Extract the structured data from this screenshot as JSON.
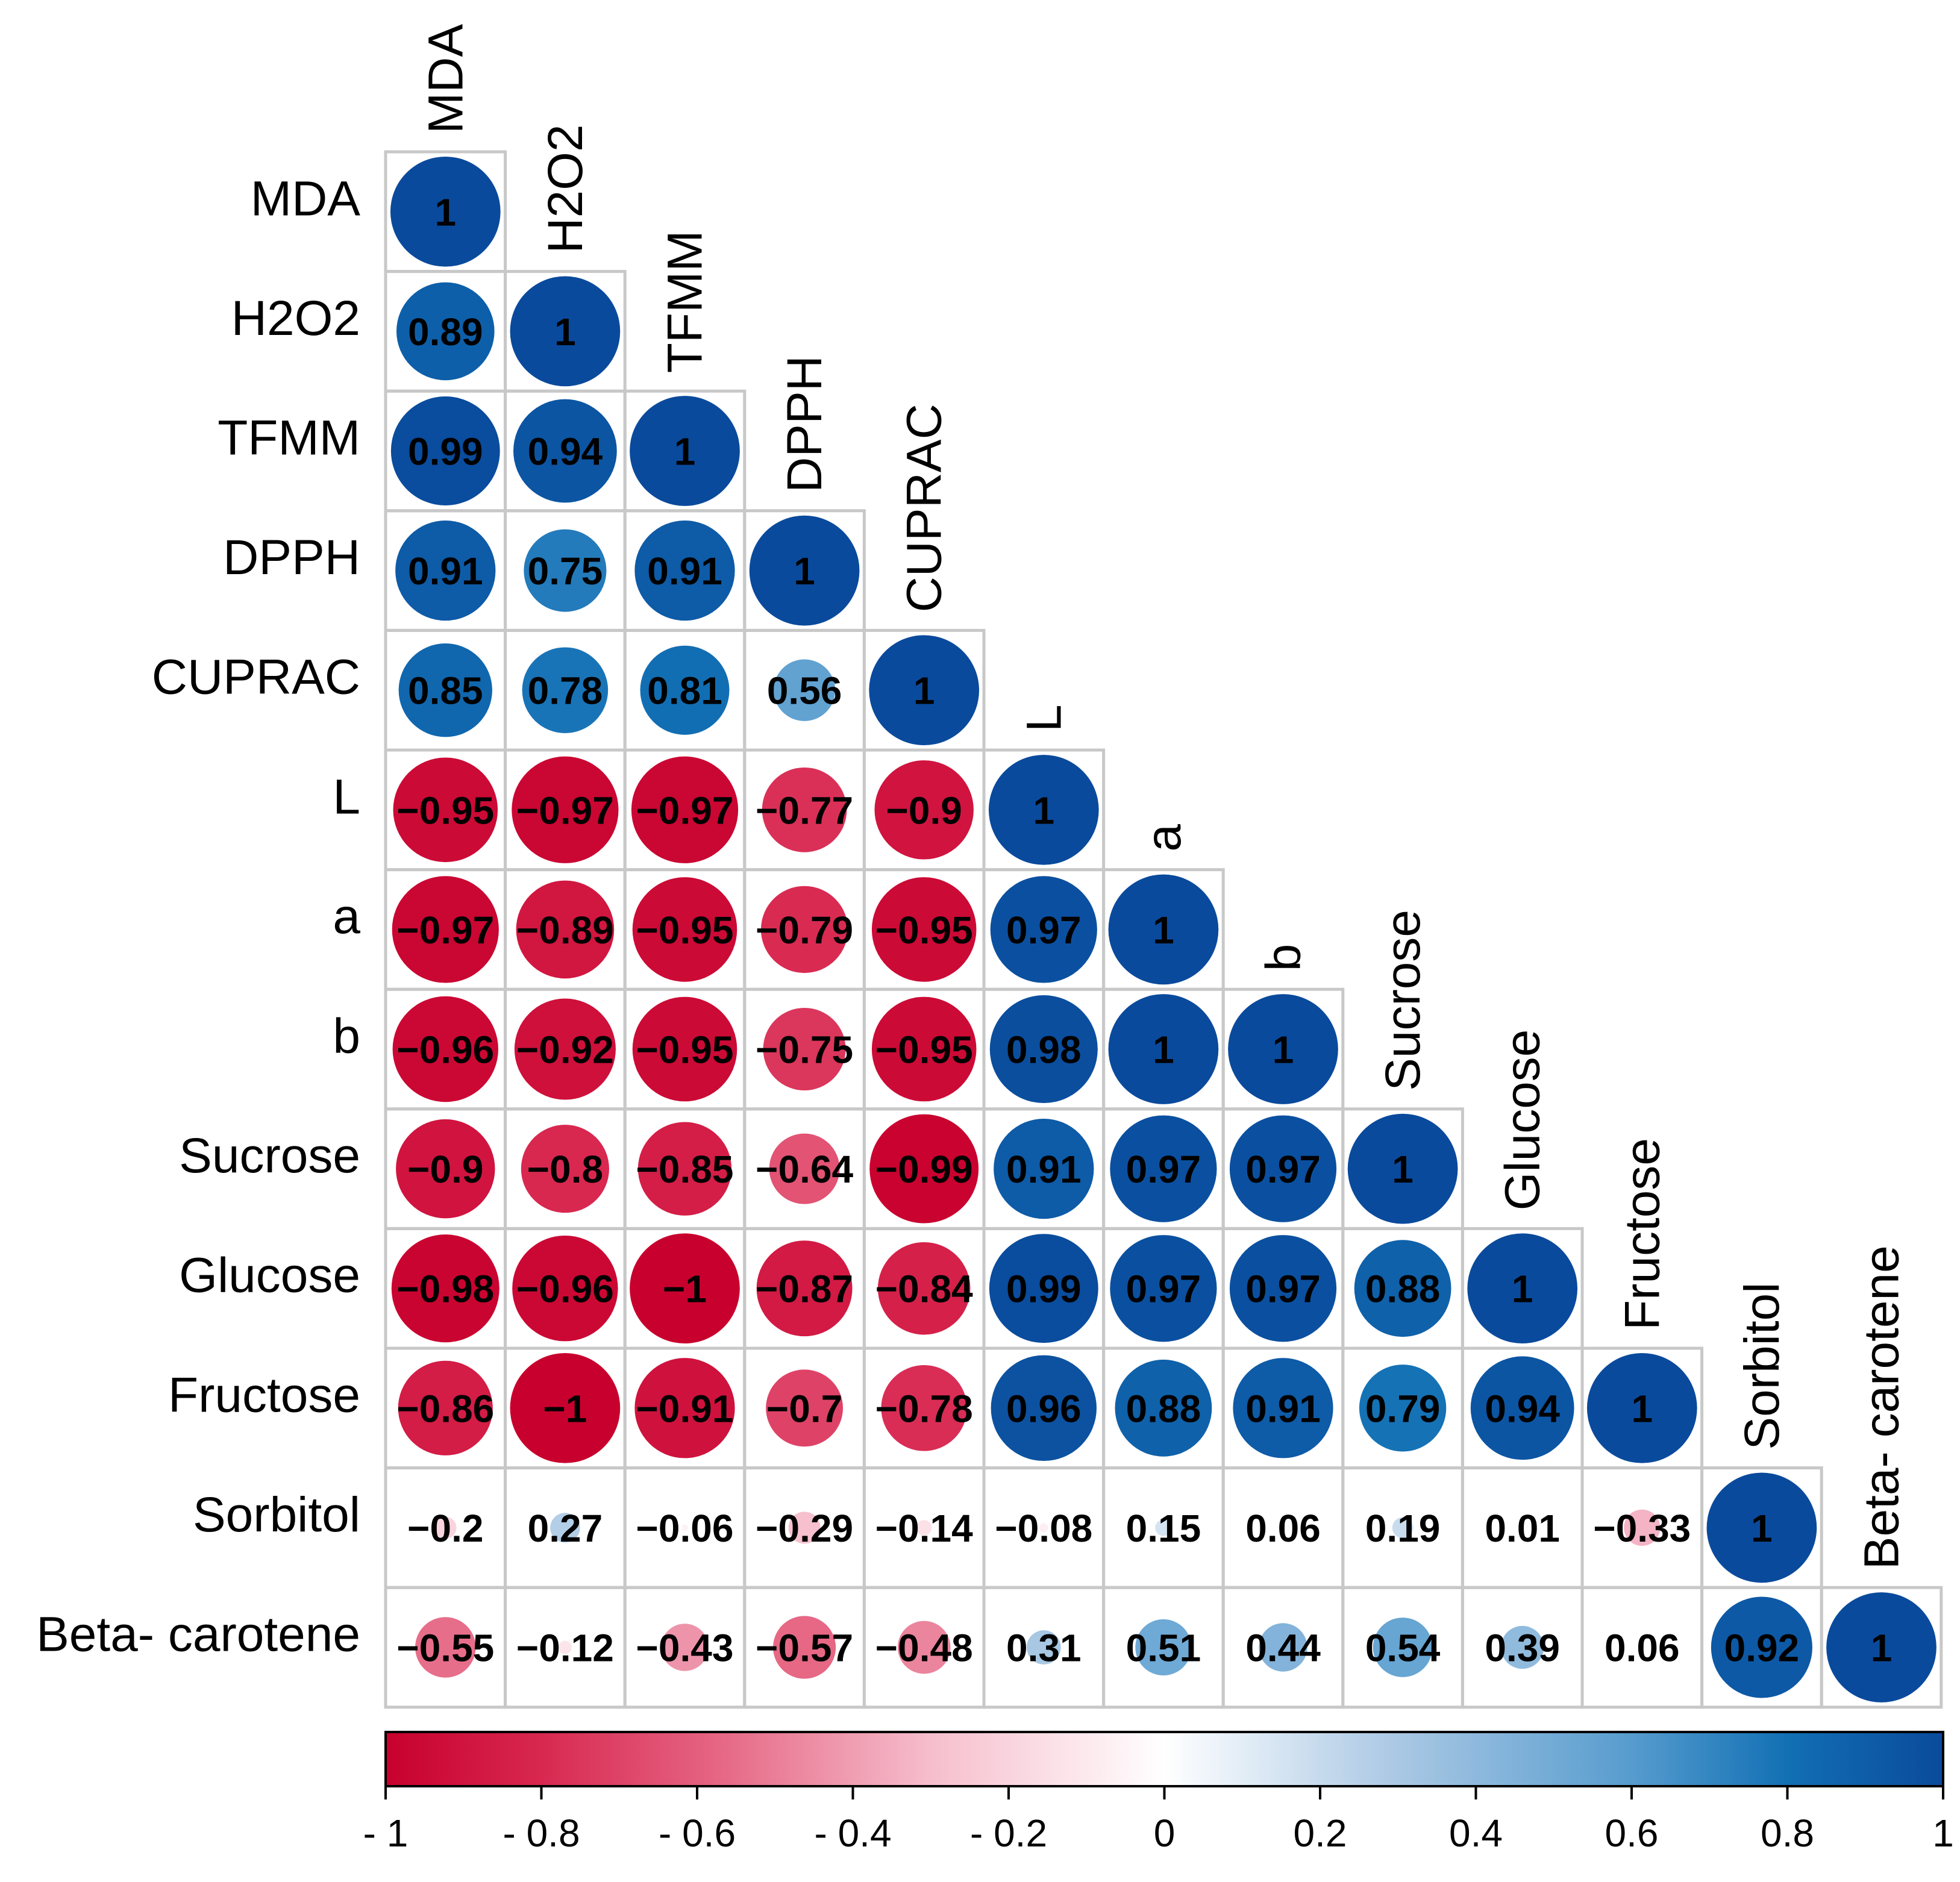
{
  "chart_data": {
    "type": "heatmap",
    "subtype": "correlation-circle-lower-triangle",
    "variables": [
      "MDA",
      "H2O2",
      "TFMM",
      "DPPH",
      "CUPRAC",
      "L",
      "a",
      "b",
      "Sucrose",
      "Glucose",
      "Fructose",
      "Sorbitol",
      "Beta- carotene"
    ],
    "rows": [
      {
        "label": "MDA",
        "values": [
          1
        ],
        "labels": [
          "1"
        ]
      },
      {
        "label": "H2O2",
        "values": [
          0.89,
          1
        ],
        "labels": [
          "0.89",
          "1"
        ]
      },
      {
        "label": "TFMM",
        "values": [
          0.99,
          0.94,
          1
        ],
        "labels": [
          "0.99",
          "0.94",
          "1"
        ]
      },
      {
        "label": "DPPH",
        "values": [
          0.91,
          0.75,
          0.91,
          1
        ],
        "labels": [
          "0.91",
          "0.75",
          "0.91",
          "1"
        ]
      },
      {
        "label": "CUPRAC",
        "values": [
          0.85,
          0.78,
          0.81,
          0.56,
          1
        ],
        "labels": [
          "0.85",
          "0.78",
          "0.81",
          "0.56",
          "1"
        ]
      },
      {
        "label": "L",
        "values": [
          -0.95,
          -0.97,
          -0.97,
          -0.77,
          -0.9,
          1
        ],
        "labels": [
          "−0.95",
          "−0.97",
          "−0.97",
          "−0.77",
          "−0.9",
          "1"
        ]
      },
      {
        "label": "a",
        "values": [
          -0.97,
          -0.89,
          -0.95,
          -0.79,
          -0.95,
          0.97,
          1
        ],
        "labels": [
          "−0.97",
          "−0.89",
          "−0.95",
          "−0.79",
          "−0.95",
          "0.97",
          "1"
        ]
      },
      {
        "label": "b",
        "values": [
          -0.96,
          -0.92,
          -0.95,
          -0.75,
          -0.95,
          0.98,
          1,
          1
        ],
        "labels": [
          "−0.96",
          "−0.92",
          "−0.95",
          "−0.75",
          "−0.95",
          "0.98",
          "1",
          "1"
        ]
      },
      {
        "label": "Sucrose",
        "values": [
          -0.9,
          -0.8,
          -0.85,
          -0.64,
          -0.99,
          0.91,
          0.97,
          0.97,
          1
        ],
        "labels": [
          "−0.9",
          "−0.8",
          "−0.85",
          "−0.64",
          "−0.99",
          "0.91",
          "0.97",
          "0.97",
          "1"
        ]
      },
      {
        "label": "Glucose",
        "values": [
          -0.98,
          -0.96,
          -1,
          -0.87,
          -0.84,
          0.99,
          0.97,
          0.97,
          0.88,
          1
        ],
        "labels": [
          "−0.98",
          "−0.96",
          "−1",
          "−0.87",
          "−0.84",
          "0.99",
          "0.97",
          "0.97",
          "0.88",
          "1"
        ]
      },
      {
        "label": "Fructose",
        "values": [
          -0.86,
          -1,
          -0.91,
          -0.7,
          -0.78,
          0.96,
          0.88,
          0.91,
          0.79,
          0.94,
          1
        ],
        "labels": [
          "−0.86",
          "−1",
          "−0.91",
          "−0.7",
          "−0.78",
          "0.96",
          "0.88",
          "0.91",
          "0.79",
          "0.94",
          "1"
        ]
      },
      {
        "label": "Sorbitol",
        "values": [
          -0.2,
          0.27,
          -0.06,
          -0.29,
          -0.14,
          -0.08,
          0.15,
          0.06,
          0.19,
          0.01,
          -0.33,
          1
        ],
        "labels": [
          "−0.2",
          "0.27",
          "−0.06",
          "−0.29",
          "−0.14",
          "−0.08",
          "0.15",
          "0.06",
          "0.19",
          "0.01",
          "−0.33",
          "1"
        ]
      },
      {
        "label": "Beta- carotene",
        "values": [
          -0.55,
          -0.12,
          -0.43,
          -0.57,
          -0.48,
          0.31,
          0.51,
          0.44,
          0.54,
          0.39,
          0.06,
          0.92,
          1
        ],
        "labels": [
          "−0.55",
          "−0.12",
          "−0.43",
          "−0.57",
          "−0.48",
          "0.31",
          "0.51",
          "0.44",
          "0.54",
          "0.39",
          "0.06",
          "0.92",
          "1"
        ]
      }
    ],
    "colorbar": {
      "range": [
        -1,
        1
      ],
      "ticks": [
        -1,
        -0.8,
        -0.6,
        -0.4,
        -0.2,
        0,
        0.2,
        0.4,
        0.6,
        0.8,
        1
      ],
      "tick_labels": [
        "- 1",
        "- 0.8",
        "- 0.6",
        "- 0.4",
        "- 0.2",
        "0",
        "0.2",
        "0.4",
        "0.6",
        "0.8",
        "1"
      ]
    },
    "colors": {
      "negative": "#c8002d",
      "neutral": "#ffffff",
      "positive": "#0a4a9c",
      "mid_positive": "#0f74b8",
      "mid_negative": "#e0607e"
    }
  }
}
